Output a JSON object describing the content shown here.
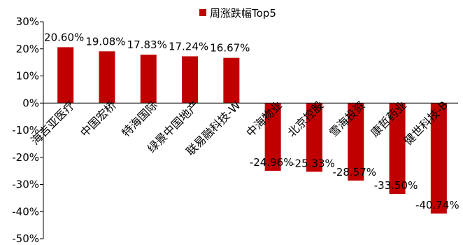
{
  "chart_data": {
    "type": "bar",
    "legend": {
      "position": "top",
      "label": "周涨跌幅Top5",
      "color": "#C00000"
    },
    "categories": [
      "海吉亚医疗",
      "中国宏桥",
      "特海国际",
      "绿景中国地产",
      "联易融科技-W",
      "中海物业",
      "北京控股",
      "雪海投资",
      "康哲药业",
      "健世科技-B"
    ],
    "series": [
      {
        "name": "周涨跌幅Top5",
        "color": "#C00000",
        "values": [
          20.6,
          19.08,
          17.83,
          17.24,
          16.67,
          -24.96,
          -25.33,
          -28.57,
          -33.5,
          -40.74
        ],
        "labels": [
          "20.60%",
          "19.08%",
          "17.83%",
          "17.24%",
          "16.67%",
          "-24.96%",
          "-25.33%",
          "-28.57%",
          "-33.50%",
          "-40.74%"
        ]
      }
    ],
    "ylim": [
      -50,
      30
    ],
    "yticks": [
      30,
      20,
      10,
      0,
      -10,
      -20,
      -30,
      -40,
      -50
    ],
    "ytick_labels": [
      "30%",
      "20%",
      "10%",
      "0%",
      "-10%",
      "-20%",
      "-30%",
      "-40%",
      "-50%"
    ],
    "grid": false
  }
}
